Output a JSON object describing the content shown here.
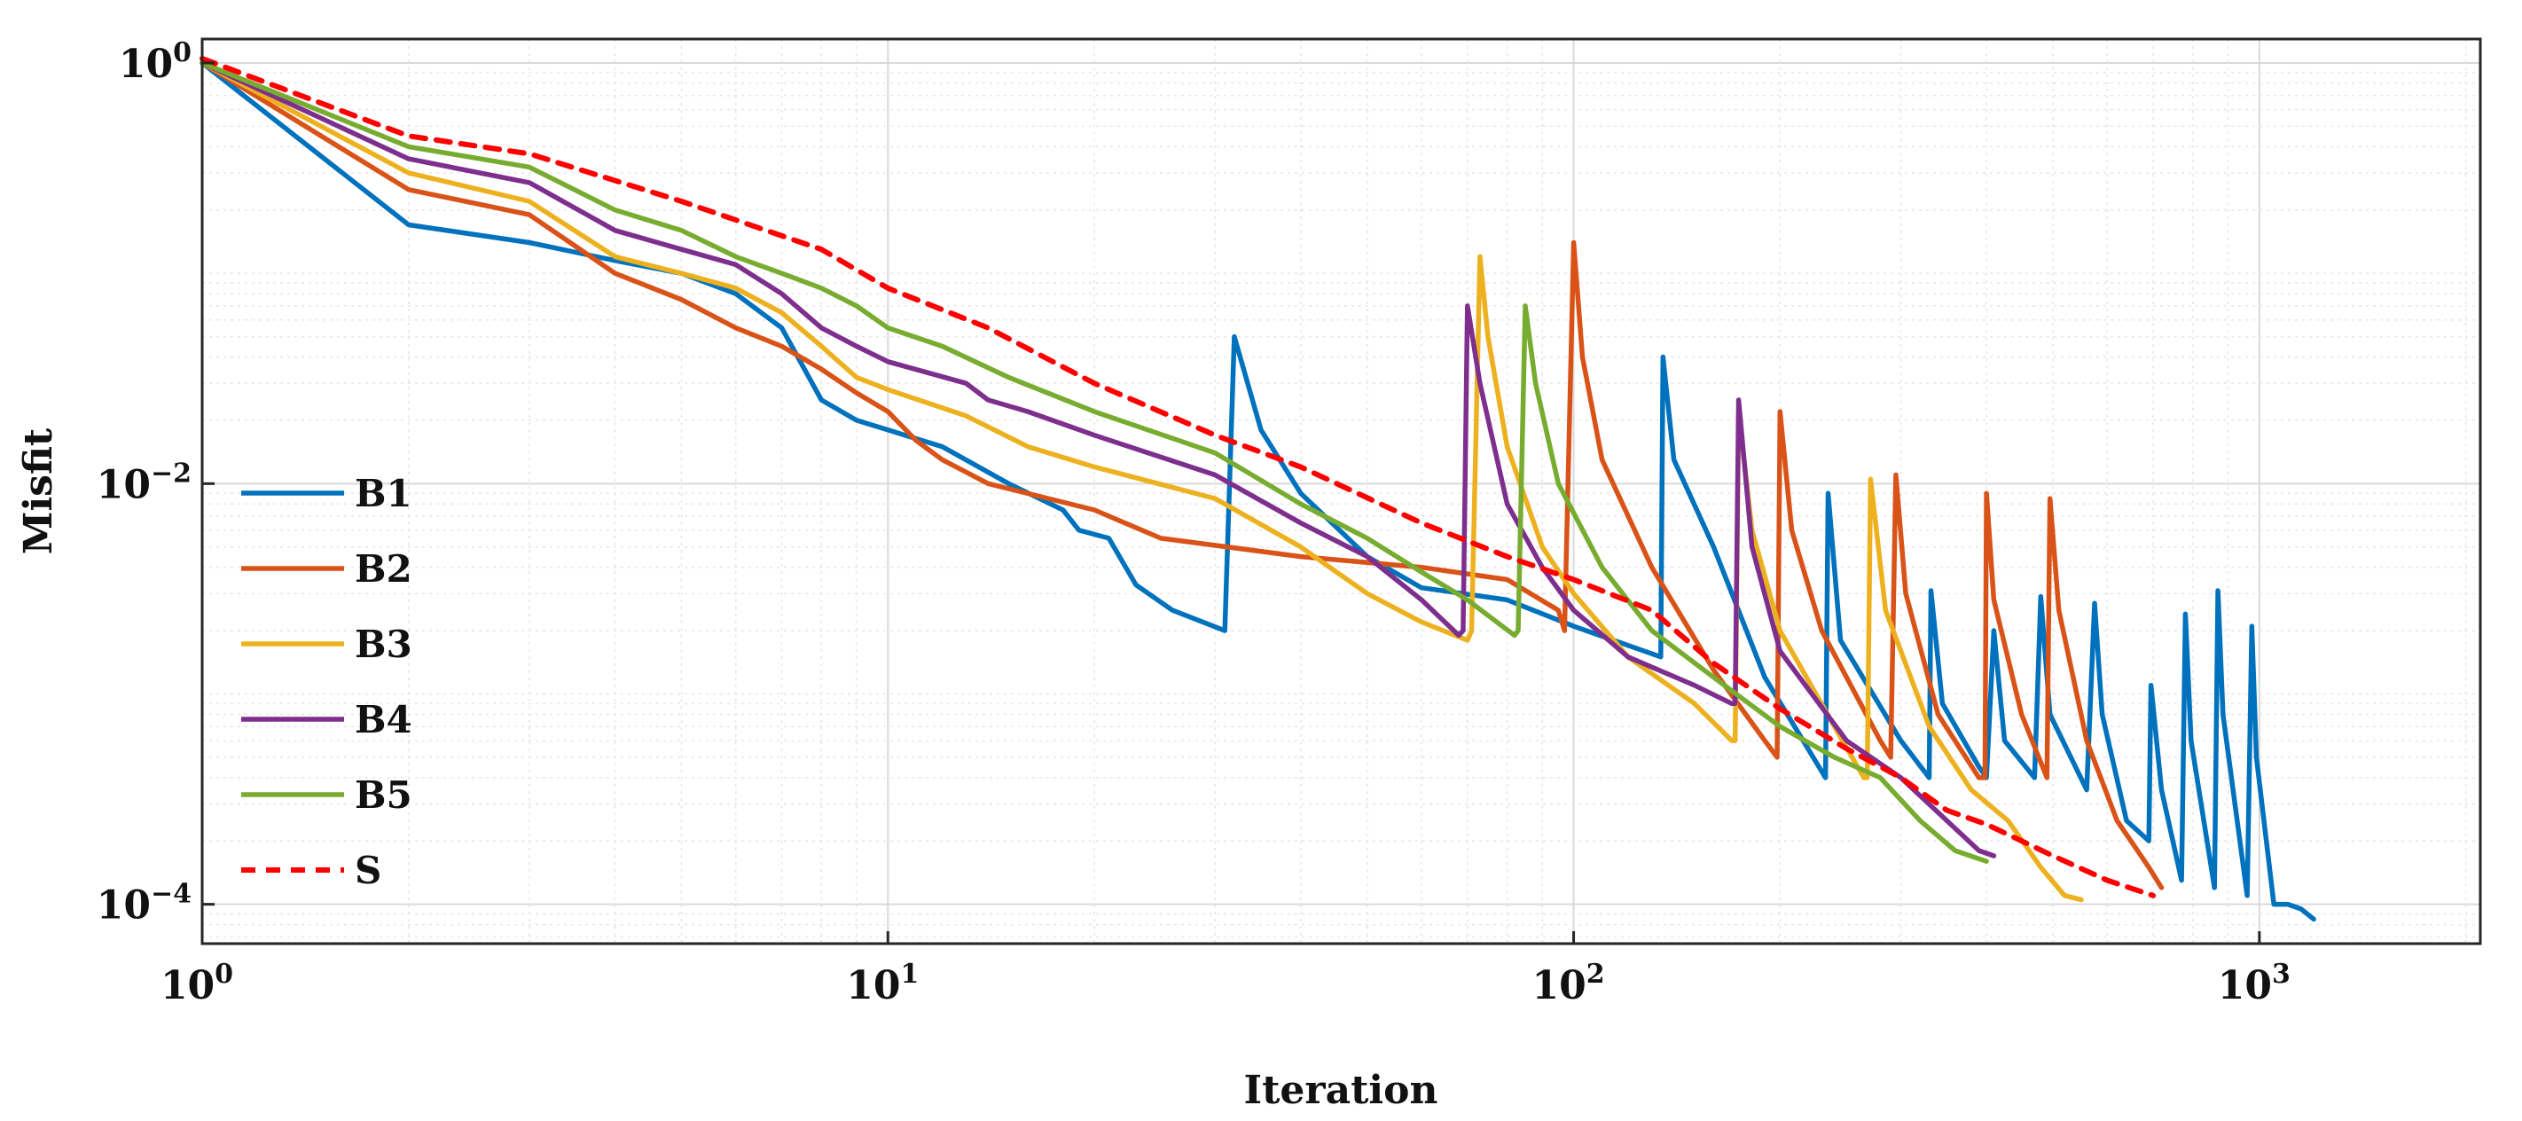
{
  "chart_data": {
    "type": "line",
    "title": "",
    "xlabel": "Iteration",
    "ylabel": "Misfit",
    "xscale": "log",
    "yscale": "log",
    "xlim": [
      1,
      2100
    ],
    "ylim": [
      6.5e-05,
      1.3
    ],
    "grid": true,
    "legend_position": "left",
    "x_ticks": [
      {
        "value": 1,
        "base": "10",
        "exp": "0"
      },
      {
        "value": 10,
        "base": "10",
        "exp": "1"
      },
      {
        "value": 100,
        "base": "10",
        "exp": "2"
      },
      {
        "value": 1000,
        "base": "10",
        "exp": "3"
      }
    ],
    "y_ticks": [
      {
        "value": 1,
        "base": "10",
        "exp": "0"
      },
      {
        "value": 0.01,
        "base": "10",
        "exp": "−2"
      },
      {
        "value": 0.0001,
        "base": "10",
        "exp": "−4"
      }
    ],
    "series": [
      {
        "name": "B1",
        "color": "#0072BD",
        "dash": "solid",
        "points": [
          [
            1,
            1.0
          ],
          [
            2,
            0.17
          ],
          [
            3,
            0.14
          ],
          [
            4,
            0.115
          ],
          [
            5,
            0.1
          ],
          [
            6,
            0.08
          ],
          [
            7,
            0.055
          ],
          [
            8,
            0.025
          ],
          [
            9,
            0.02
          ],
          [
            10,
            0.018
          ],
          [
            12,
            0.015
          ],
          [
            15,
            0.01
          ],
          [
            18,
            0.0075
          ],
          [
            19,
            0.006
          ],
          [
            21,
            0.0055
          ],
          [
            23,
            0.0033
          ],
          [
            26,
            0.0025
          ],
          [
            31,
            0.002
          ],
          [
            32,
            0.05
          ],
          [
            35,
            0.018
          ],
          [
            40,
            0.009
          ],
          [
            50,
            0.0045
          ],
          [
            60,
            0.0032
          ],
          [
            80,
            0.0028
          ],
          [
            100,
            0.0021
          ],
          [
            134,
            0.0015
          ],
          [
            135,
            0.04
          ],
          [
            140,
            0.013
          ],
          [
            160,
            0.005
          ],
          [
            190,
            0.0012
          ],
          [
            210,
            0.0007
          ],
          [
            233,
            0.0004
          ],
          [
            235,
            0.009
          ],
          [
            245,
            0.0018
          ],
          [
            300,
            0.0006
          ],
          [
            330,
            0.0004
          ],
          [
            332,
            0.0031
          ],
          [
            345,
            0.0009
          ],
          [
            390,
            0.00045
          ],
          [
            400,
            0.0004
          ],
          [
            410,
            0.002
          ],
          [
            425,
            0.0006
          ],
          [
            470,
            0.0004
          ],
          [
            480,
            0.0029
          ],
          [
            495,
            0.0008
          ],
          [
            560,
            0.00035
          ],
          [
            575,
            0.0027
          ],
          [
            590,
            0.0008
          ],
          [
            640,
            0.00025
          ],
          [
            690,
            0.0002
          ],
          [
            695,
            0.0011
          ],
          [
            720,
            0.00035
          ],
          [
            770,
            0.00013
          ],
          [
            780,
            0.0024
          ],
          [
            795,
            0.0006
          ],
          [
            860,
            0.00012
          ],
          [
            870,
            0.0031
          ],
          [
            885,
            0.0008
          ],
          [
            960,
            0.00011
          ],
          [
            975,
            0.0021
          ],
          [
            990,
            0.0005
          ],
          [
            1050,
            0.0001
          ],
          [
            1100,
            0.0001
          ],
          [
            1150,
            9.5e-05
          ],
          [
            1200,
            8.5e-05
          ]
        ]
      },
      {
        "name": "B2",
        "color": "#D95319",
        "dash": "solid",
        "points": [
          [
            1,
            1.0
          ],
          [
            2,
            0.25
          ],
          [
            3,
            0.19
          ],
          [
            4,
            0.1
          ],
          [
            5,
            0.075
          ],
          [
            6,
            0.055
          ],
          [
            7,
            0.045
          ],
          [
            8,
            0.035
          ],
          [
            9,
            0.027
          ],
          [
            10,
            0.022
          ],
          [
            11,
            0.016
          ],
          [
            12,
            0.013
          ],
          [
            14,
            0.01
          ],
          [
            20,
            0.0075
          ],
          [
            25,
            0.0055
          ],
          [
            40,
            0.0045
          ],
          [
            60,
            0.004
          ],
          [
            80,
            0.0035
          ],
          [
            95,
            0.0025
          ],
          [
            97,
            0.002
          ],
          [
            100,
            0.14
          ],
          [
            103,
            0.04
          ],
          [
            110,
            0.013
          ],
          [
            130,
            0.004
          ],
          [
            160,
            0.0013
          ],
          [
            190,
            0.0006
          ],
          [
            198,
            0.0005
          ],
          [
            200,
            0.022
          ],
          [
            208,
            0.006
          ],
          [
            230,
            0.002
          ],
          [
            280,
            0.0006
          ],
          [
            290,
            0.0005
          ],
          [
            295,
            0.011
          ],
          [
            305,
            0.003
          ],
          [
            340,
            0.0008
          ],
          [
            390,
            0.0004
          ],
          [
            398,
            0.0004
          ],
          [
            400,
            0.009
          ],
          [
            410,
            0.0028
          ],
          [
            450,
            0.0008
          ],
          [
            490,
            0.0004
          ],
          [
            495,
            0.0085
          ],
          [
            510,
            0.0025
          ],
          [
            560,
            0.0006
          ],
          [
            620,
            0.00025
          ],
          [
            690,
            0.00015
          ],
          [
            720,
            0.00012
          ]
        ]
      },
      {
        "name": "B3",
        "color": "#EDB120",
        "dash": "solid",
        "points": [
          [
            1,
            1.0
          ],
          [
            2,
            0.3
          ],
          [
            3,
            0.22
          ],
          [
            4,
            0.12
          ],
          [
            5,
            0.1
          ],
          [
            6,
            0.085
          ],
          [
            7,
            0.065
          ],
          [
            8,
            0.045
          ],
          [
            9,
            0.032
          ],
          [
            10,
            0.028
          ],
          [
            13,
            0.021
          ],
          [
            16,
            0.015
          ],
          [
            20,
            0.012
          ],
          [
            30,
            0.0085
          ],
          [
            40,
            0.005
          ],
          [
            50,
            0.003
          ],
          [
            60,
            0.0022
          ],
          [
            70,
            0.0018
          ],
          [
            71,
            0.002
          ],
          [
            73,
            0.12
          ],
          [
            75,
            0.05
          ],
          [
            80,
            0.015
          ],
          [
            90,
            0.005
          ],
          [
            100,
            0.003
          ],
          [
            120,
            0.0015
          ],
          [
            150,
            0.0009
          ],
          [
            170,
            0.0006
          ],
          [
            172,
            0.0006
          ],
          [
            174,
            0.022
          ],
          [
            182,
            0.006
          ],
          [
            200,
            0.002
          ],
          [
            240,
            0.0007
          ],
          [
            265,
            0.0004
          ],
          [
            268,
            0.0004
          ],
          [
            271,
            0.0105
          ],
          [
            285,
            0.0025
          ],
          [
            330,
            0.0007
          ],
          [
            380,
            0.00035
          ],
          [
            430,
            0.00025
          ],
          [
            480,
            0.00015
          ],
          [
            520,
            0.00011
          ],
          [
            550,
            0.000105
          ]
        ]
      },
      {
        "name": "B4",
        "color": "#7E2F8E",
        "dash": "solid",
        "points": [
          [
            1,
            1.0
          ],
          [
            2,
            0.35
          ],
          [
            3,
            0.27
          ],
          [
            4,
            0.16
          ],
          [
            5,
            0.13
          ],
          [
            6,
            0.11
          ],
          [
            7,
            0.08
          ],
          [
            8,
            0.055
          ],
          [
            9,
            0.045
          ],
          [
            10,
            0.038
          ],
          [
            13,
            0.03
          ],
          [
            14,
            0.025
          ],
          [
            16,
            0.022
          ],
          [
            20,
            0.017
          ],
          [
            30,
            0.011
          ],
          [
            40,
            0.0065
          ],
          [
            50,
            0.0045
          ],
          [
            60,
            0.0028
          ],
          [
            68,
            0.0019
          ],
          [
            69,
            0.002
          ],
          [
            70,
            0.07
          ],
          [
            73,
            0.03
          ],
          [
            80,
            0.008
          ],
          [
            90,
            0.004
          ],
          [
            100,
            0.0025
          ],
          [
            120,
            0.0015
          ],
          [
            150,
            0.0011
          ],
          [
            170,
            0.0009
          ],
          [
            172,
            0.0009
          ],
          [
            174,
            0.025
          ],
          [
            182,
            0.005
          ],
          [
            200,
            0.0016
          ],
          [
            250,
            0.0006
          ],
          [
            300,
            0.0004
          ],
          [
            350,
            0.00025
          ],
          [
            390,
            0.00018
          ],
          [
            410,
            0.00017
          ]
        ]
      },
      {
        "name": "B5",
        "color": "#77AC30",
        "dash": "solid",
        "points": [
          [
            1,
            1.0
          ],
          [
            2,
            0.4
          ],
          [
            3,
            0.32
          ],
          [
            4,
            0.2
          ],
          [
            5,
            0.16
          ],
          [
            6,
            0.12
          ],
          [
            7,
            0.1
          ],
          [
            8,
            0.085
          ],
          [
            9,
            0.07
          ],
          [
            10,
            0.055
          ],
          [
            12,
            0.045
          ],
          [
            15,
            0.032
          ],
          [
            20,
            0.022
          ],
          [
            30,
            0.014
          ],
          [
            40,
            0.008
          ],
          [
            50,
            0.0055
          ],
          [
            60,
            0.0038
          ],
          [
            70,
            0.0028
          ],
          [
            82,
            0.0019
          ],
          [
            83,
            0.002
          ],
          [
            85,
            0.07
          ],
          [
            88,
            0.03
          ],
          [
            95,
            0.01
          ],
          [
            110,
            0.004
          ],
          [
            130,
            0.002
          ],
          [
            160,
            0.0012
          ],
          [
            200,
            0.0007
          ],
          [
            240,
            0.0005
          ],
          [
            280,
            0.0004
          ],
          [
            320,
            0.00025
          ],
          [
            360,
            0.00018
          ],
          [
            400,
            0.00016
          ]
        ]
      },
      {
        "name": "S",
        "color": "#FF0000",
        "dash": "dashed",
        "points": [
          [
            1,
            1.05
          ],
          [
            2,
            0.45
          ],
          [
            3,
            0.37
          ],
          [
            5,
            0.22
          ],
          [
            8,
            0.13
          ],
          [
            10,
            0.085
          ],
          [
            14,
            0.055
          ],
          [
            20,
            0.03
          ],
          [
            30,
            0.017
          ],
          [
            40,
            0.012
          ],
          [
            60,
            0.0065
          ],
          [
            80,
            0.0045
          ],
          [
            100,
            0.0035
          ],
          [
            130,
            0.0025
          ],
          [
            160,
            0.0014
          ],
          [
            200,
            0.00085
          ],
          [
            250,
            0.00055
          ],
          [
            300,
            0.0004
          ],
          [
            350,
            0.00028
          ],
          [
            400,
            0.00024
          ],
          [
            450,
            0.0002
          ],
          [
            500,
            0.00017
          ],
          [
            600,
            0.00013
          ],
          [
            700,
            0.00011
          ]
        ]
      }
    ]
  }
}
